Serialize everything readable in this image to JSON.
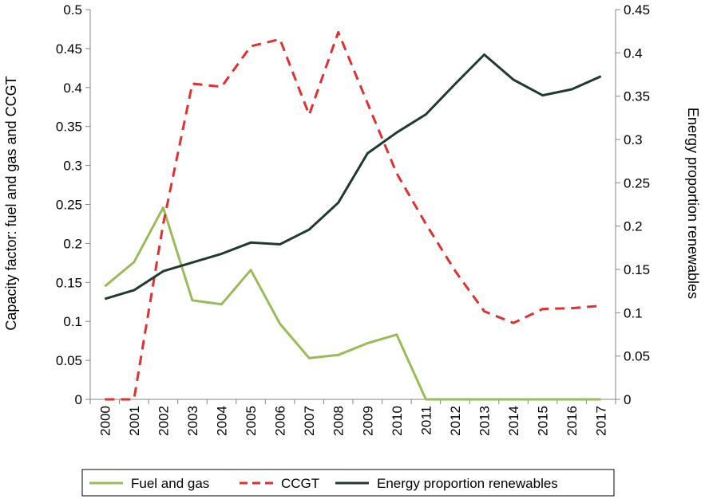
{
  "chart_data": {
    "type": "line",
    "categories": [
      "2000",
      "2001",
      "2002",
      "2003",
      "2004",
      "2005",
      "2006",
      "2007",
      "2008",
      "2009",
      "2010",
      "2011",
      "2012",
      "2013",
      "2014",
      "2015",
      "2016",
      "2017"
    ],
    "left_axis": {
      "label": "Capacity factor: fuel and gas and CCGT",
      "ylim": [
        0,
        0.5
      ],
      "ticks": [
        "0",
        "0.05",
        "0.1",
        "0.15",
        "0.2",
        "0.25",
        "0.3",
        "0.35",
        "0.4",
        "0.45",
        "0.5"
      ]
    },
    "right_axis": {
      "label": "Energy proportion renewables",
      "ylim": [
        0,
        0.45
      ],
      "ticks": [
        "0",
        "0.05",
        "0.1",
        "0.15",
        "0.2",
        "0.25",
        "0.3",
        "0.35",
        "0.4",
        "0.45"
      ]
    },
    "series": [
      {
        "name": "Fuel and gas",
        "axis": "left",
        "color": "#9bbb59",
        "dash": "solid",
        "values": [
          0.145,
          0.176,
          0.246,
          0.127,
          0.122,
          0.166,
          0.097,
          0.053,
          0.057,
          0.072,
          0.083,
          0.0,
          0.0,
          0.0,
          0.0,
          0.0,
          0.0,
          0.0
        ]
      },
      {
        "name": "CCGT",
        "axis": "left",
        "color": "#e03030",
        "dash": "dashed",
        "values": [
          0.0,
          0.0,
          0.225,
          0.405,
          0.401,
          0.453,
          0.462,
          0.365,
          0.471,
          0.38,
          0.29,
          0.225,
          0.165,
          0.113,
          0.098,
          0.116,
          0.117,
          0.12
        ]
      },
      {
        "name": "Energy proportion renewables",
        "axis": "right",
        "color": "#1f3b2e",
        "dash": "solid",
        "values": [
          0.116,
          0.126,
          0.148,
          0.158,
          0.168,
          0.181,
          0.179,
          0.196,
          0.227,
          0.284,
          0.308,
          0.329,
          0.364,
          0.398,
          0.369,
          0.351,
          0.358,
          0.373
        ]
      }
    ],
    "legend_position": "bottom",
    "grid": false
  }
}
